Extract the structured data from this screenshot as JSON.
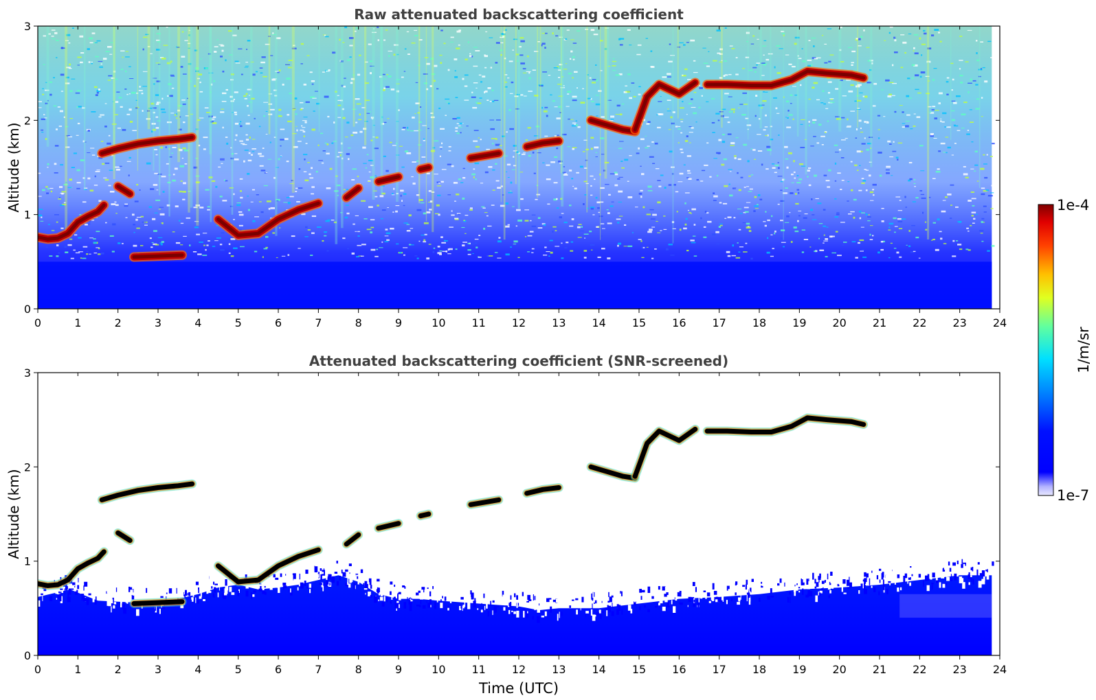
{
  "chart_data": [
    {
      "type": "heatmap",
      "title": "Raw attenuated backscattering coefficient",
      "xlabel": "",
      "ylabel": "Altitude (km)",
      "xlim": [
        0,
        24
      ],
      "ylim": [
        0,
        3
      ],
      "x_ticks": [
        "0",
        "1",
        "2",
        "3",
        "4",
        "5",
        "6",
        "7",
        "8",
        "9",
        "10",
        "11",
        "12",
        "13",
        "14",
        "15",
        "16",
        "17",
        "18",
        "19",
        "20",
        "21",
        "22",
        "23",
        "24"
      ],
      "y_ticks": [
        "0",
        "1",
        "2",
        "3"
      ],
      "data_end_time": 23.8,
      "cloud_layer": {
        "segments": [
          {
            "t": [
              0.0,
              0.25,
              0.5,
              0.75,
              1.0,
              1.25,
              1.5,
              1.65
            ],
            "alt": [
              0.76,
              0.74,
              0.75,
              0.8,
              0.92,
              0.98,
              1.03,
              1.1
            ]
          },
          {
            "t": [
              1.6,
              2.0,
              2.5,
              3.0,
              3.5,
              3.85
            ],
            "alt": [
              1.65,
              1.7,
              1.75,
              1.78,
              1.8,
              1.82
            ]
          },
          {
            "t": [
              2.0,
              2.3
            ],
            "alt": [
              1.3,
              1.22
            ]
          },
          {
            "t": [
              2.4,
              3.0,
              3.6
            ],
            "alt": [
              0.55,
              0.56,
              0.57
            ]
          },
          {
            "t": [
              4.5,
              5.0,
              5.5,
              6.0,
              6.5,
              7.0
            ],
            "alt": [
              0.95,
              0.78,
              0.8,
              0.95,
              1.05,
              1.12
            ]
          },
          {
            "t": [
              7.7,
              8.0
            ],
            "alt": [
              1.18,
              1.28
            ]
          },
          {
            "t": [
              8.5,
              9.0
            ],
            "alt": [
              1.35,
              1.4
            ]
          },
          {
            "t": [
              9.55,
              9.75
            ],
            "alt": [
              1.48,
              1.5
            ]
          },
          {
            "t": [
              10.8,
              11.5
            ],
            "alt": [
              1.6,
              1.65
            ]
          },
          {
            "t": [
              12.2,
              12.6,
              13.0
            ],
            "alt": [
              1.72,
              1.76,
              1.78
            ]
          },
          {
            "t": [
              13.8,
              14.2,
              14.6,
              14.9
            ],
            "alt": [
              2.0,
              1.95,
              1.9,
              1.88
            ]
          },
          {
            "t": [
              14.9,
              15.2,
              15.5,
              16.0,
              16.4
            ],
            "alt": [
              1.9,
              2.25,
              2.38,
              2.28,
              2.4
            ]
          },
          {
            "t": [
              16.7,
              17.2,
              17.8,
              18.3,
              18.8,
              19.2,
              19.7,
              20.3,
              20.6
            ],
            "alt": [
              2.38,
              2.38,
              2.37,
              2.37,
              2.43,
              2.52,
              2.5,
              2.48,
              2.45
            ]
          }
        ]
      }
    },
    {
      "type": "heatmap",
      "title": "Attenuated backscattering coefficient (SNR-screened)",
      "xlabel": "Time (UTC)",
      "ylabel": "Altitude (km)",
      "xlim": [
        0,
        24
      ],
      "ylim": [
        0,
        3
      ],
      "x_ticks": [
        "0",
        "1",
        "2",
        "3",
        "4",
        "5",
        "6",
        "7",
        "8",
        "9",
        "10",
        "11",
        "12",
        "13",
        "14",
        "15",
        "16",
        "17",
        "18",
        "19",
        "20",
        "21",
        "22",
        "23",
        "24"
      ],
      "y_ticks": [
        "0",
        "1",
        "2",
        "3"
      ],
      "screened_boundary": {
        "t": [
          0,
          0.8,
          1.5,
          2,
          2.5,
          3,
          3.5,
          4,
          4.5,
          5,
          5.5,
          6,
          6.5,
          7,
          7.5,
          8,
          8.5,
          9,
          9.5,
          10,
          11,
          12,
          12.5,
          13,
          14,
          15,
          16,
          17,
          18,
          19,
          20,
          21,
          22,
          23,
          23.8
        ],
        "alt": [
          0.62,
          0.7,
          0.58,
          0.57,
          0.56,
          0.56,
          0.6,
          0.65,
          0.72,
          0.75,
          0.7,
          0.72,
          0.75,
          0.8,
          0.85,
          0.78,
          0.65,
          0.6,
          0.6,
          0.58,
          0.55,
          0.52,
          0.48,
          0.5,
          0.5,
          0.55,
          0.6,
          0.62,
          0.65,
          0.7,
          0.72,
          0.75,
          0.8,
          0.85,
          0.85
        ]
      }
    }
  ],
  "colorbar": {
    "label": "1/m/sr",
    "max_label": "1e-4",
    "min_label": "1e-7",
    "scale": "log",
    "colormap": "jet",
    "colors": [
      "#00007f",
      "#0000ff",
      "#007fff",
      "#00ffff",
      "#7fff7f",
      "#ffff00",
      "#ff7f00",
      "#ff0000",
      "#7f0000"
    ]
  }
}
